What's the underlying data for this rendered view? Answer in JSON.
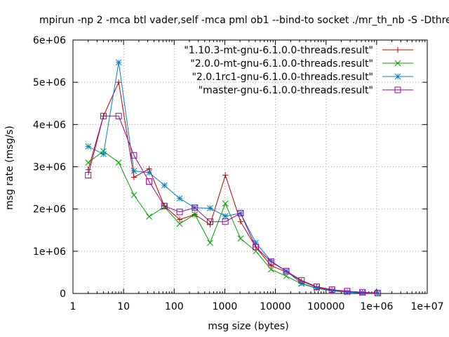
{
  "chart_data": {
    "type": "line",
    "title": "mpirun -np 2 -mca btl vader,self -mca pml ob1 --bind-to socket ./mr_th_nb -S -Dthre",
    "xlabel": "msg size (bytes)",
    "ylabel": "msg rate (msg/s)",
    "xscale": "log",
    "xlim": [
      1,
      10000000
    ],
    "ylim": [
      0,
      6000000
    ],
    "xticks": [
      {
        "value": 1,
        "label": "1"
      },
      {
        "value": 10,
        "label": "10"
      },
      {
        "value": 100,
        "label": "100"
      },
      {
        "value": 1000,
        "label": "1000"
      },
      {
        "value": 10000,
        "label": "10000"
      },
      {
        "value": 100000,
        "label": "100000"
      },
      {
        "value": 1000000,
        "label": "1e+06"
      },
      {
        "value": 10000000,
        "label": "1e+07"
      }
    ],
    "yticks": [
      {
        "value": 0,
        "label": "0"
      },
      {
        "value": 1000000,
        "label": "1e+06"
      },
      {
        "value": 2000000,
        "label": "2e+06"
      },
      {
        "value": 3000000,
        "label": "3e+06"
      },
      {
        "value": 4000000,
        "label": "4e+06"
      },
      {
        "value": 5000000,
        "label": "5e+06"
      },
      {
        "value": 6000000,
        "label": "6e+06"
      }
    ],
    "grid": true,
    "legend_position": "top-right",
    "x": [
      2,
      4,
      8,
      16,
      32,
      64,
      128,
      256,
      512,
      1024,
      2048,
      4096,
      8192,
      16384,
      32768,
      65536,
      131072,
      262144,
      524288,
      1048576
    ],
    "series": [
      {
        "name": "\"1.10.3-mt-gnu-6.1.0.0-threads.result\"",
        "color": "#c00000",
        "marker": "plus",
        "values": [
          2930000,
          4200000,
          5000000,
          2750000,
          2950000,
          2070000,
          1750000,
          1870000,
          1630000,
          2800000,
          1700000,
          1100000,
          660000,
          510000,
          290000,
          150000,
          75000,
          35000,
          18000,
          8000
        ]
      },
      {
        "name": "\"2.0.0-mt-gnu-6.1.0.0-threads.result\"",
        "color": "#00a000",
        "marker": "x",
        "values": [
          3100000,
          3370000,
          3100000,
          2330000,
          1820000,
          2050000,
          1650000,
          1870000,
          1200000,
          2130000,
          1300000,
          1000000,
          570000,
          410000,
          230000,
          120000,
          60000,
          28000,
          14000,
          6000
        ]
      },
      {
        "name": "\"2.0.1rc1-gnu-6.1.0.0-threads.result\"",
        "color": "#0080c0",
        "marker": "star",
        "values": [
          3480000,
          3300000,
          5470000,
          2900000,
          2860000,
          2560000,
          2250000,
          2030000,
          2020000,
          1830000,
          1900000,
          1200000,
          770000,
          530000,
          240000,
          130000,
          65000,
          30000,
          15000,
          7000
        ]
      },
      {
        "name": "\"master-gnu-6.1.0.0-threads.result\"",
        "color": "#a000a0",
        "marker": "square",
        "values": [
          2800000,
          4200000,
          4200000,
          3270000,
          2650000,
          2070000,
          1930000,
          2030000,
          1700000,
          1700000,
          1900000,
          1100000,
          750000,
          530000,
          310000,
          160000,
          90000,
          55000,
          30000,
          12000
        ]
      }
    ]
  }
}
